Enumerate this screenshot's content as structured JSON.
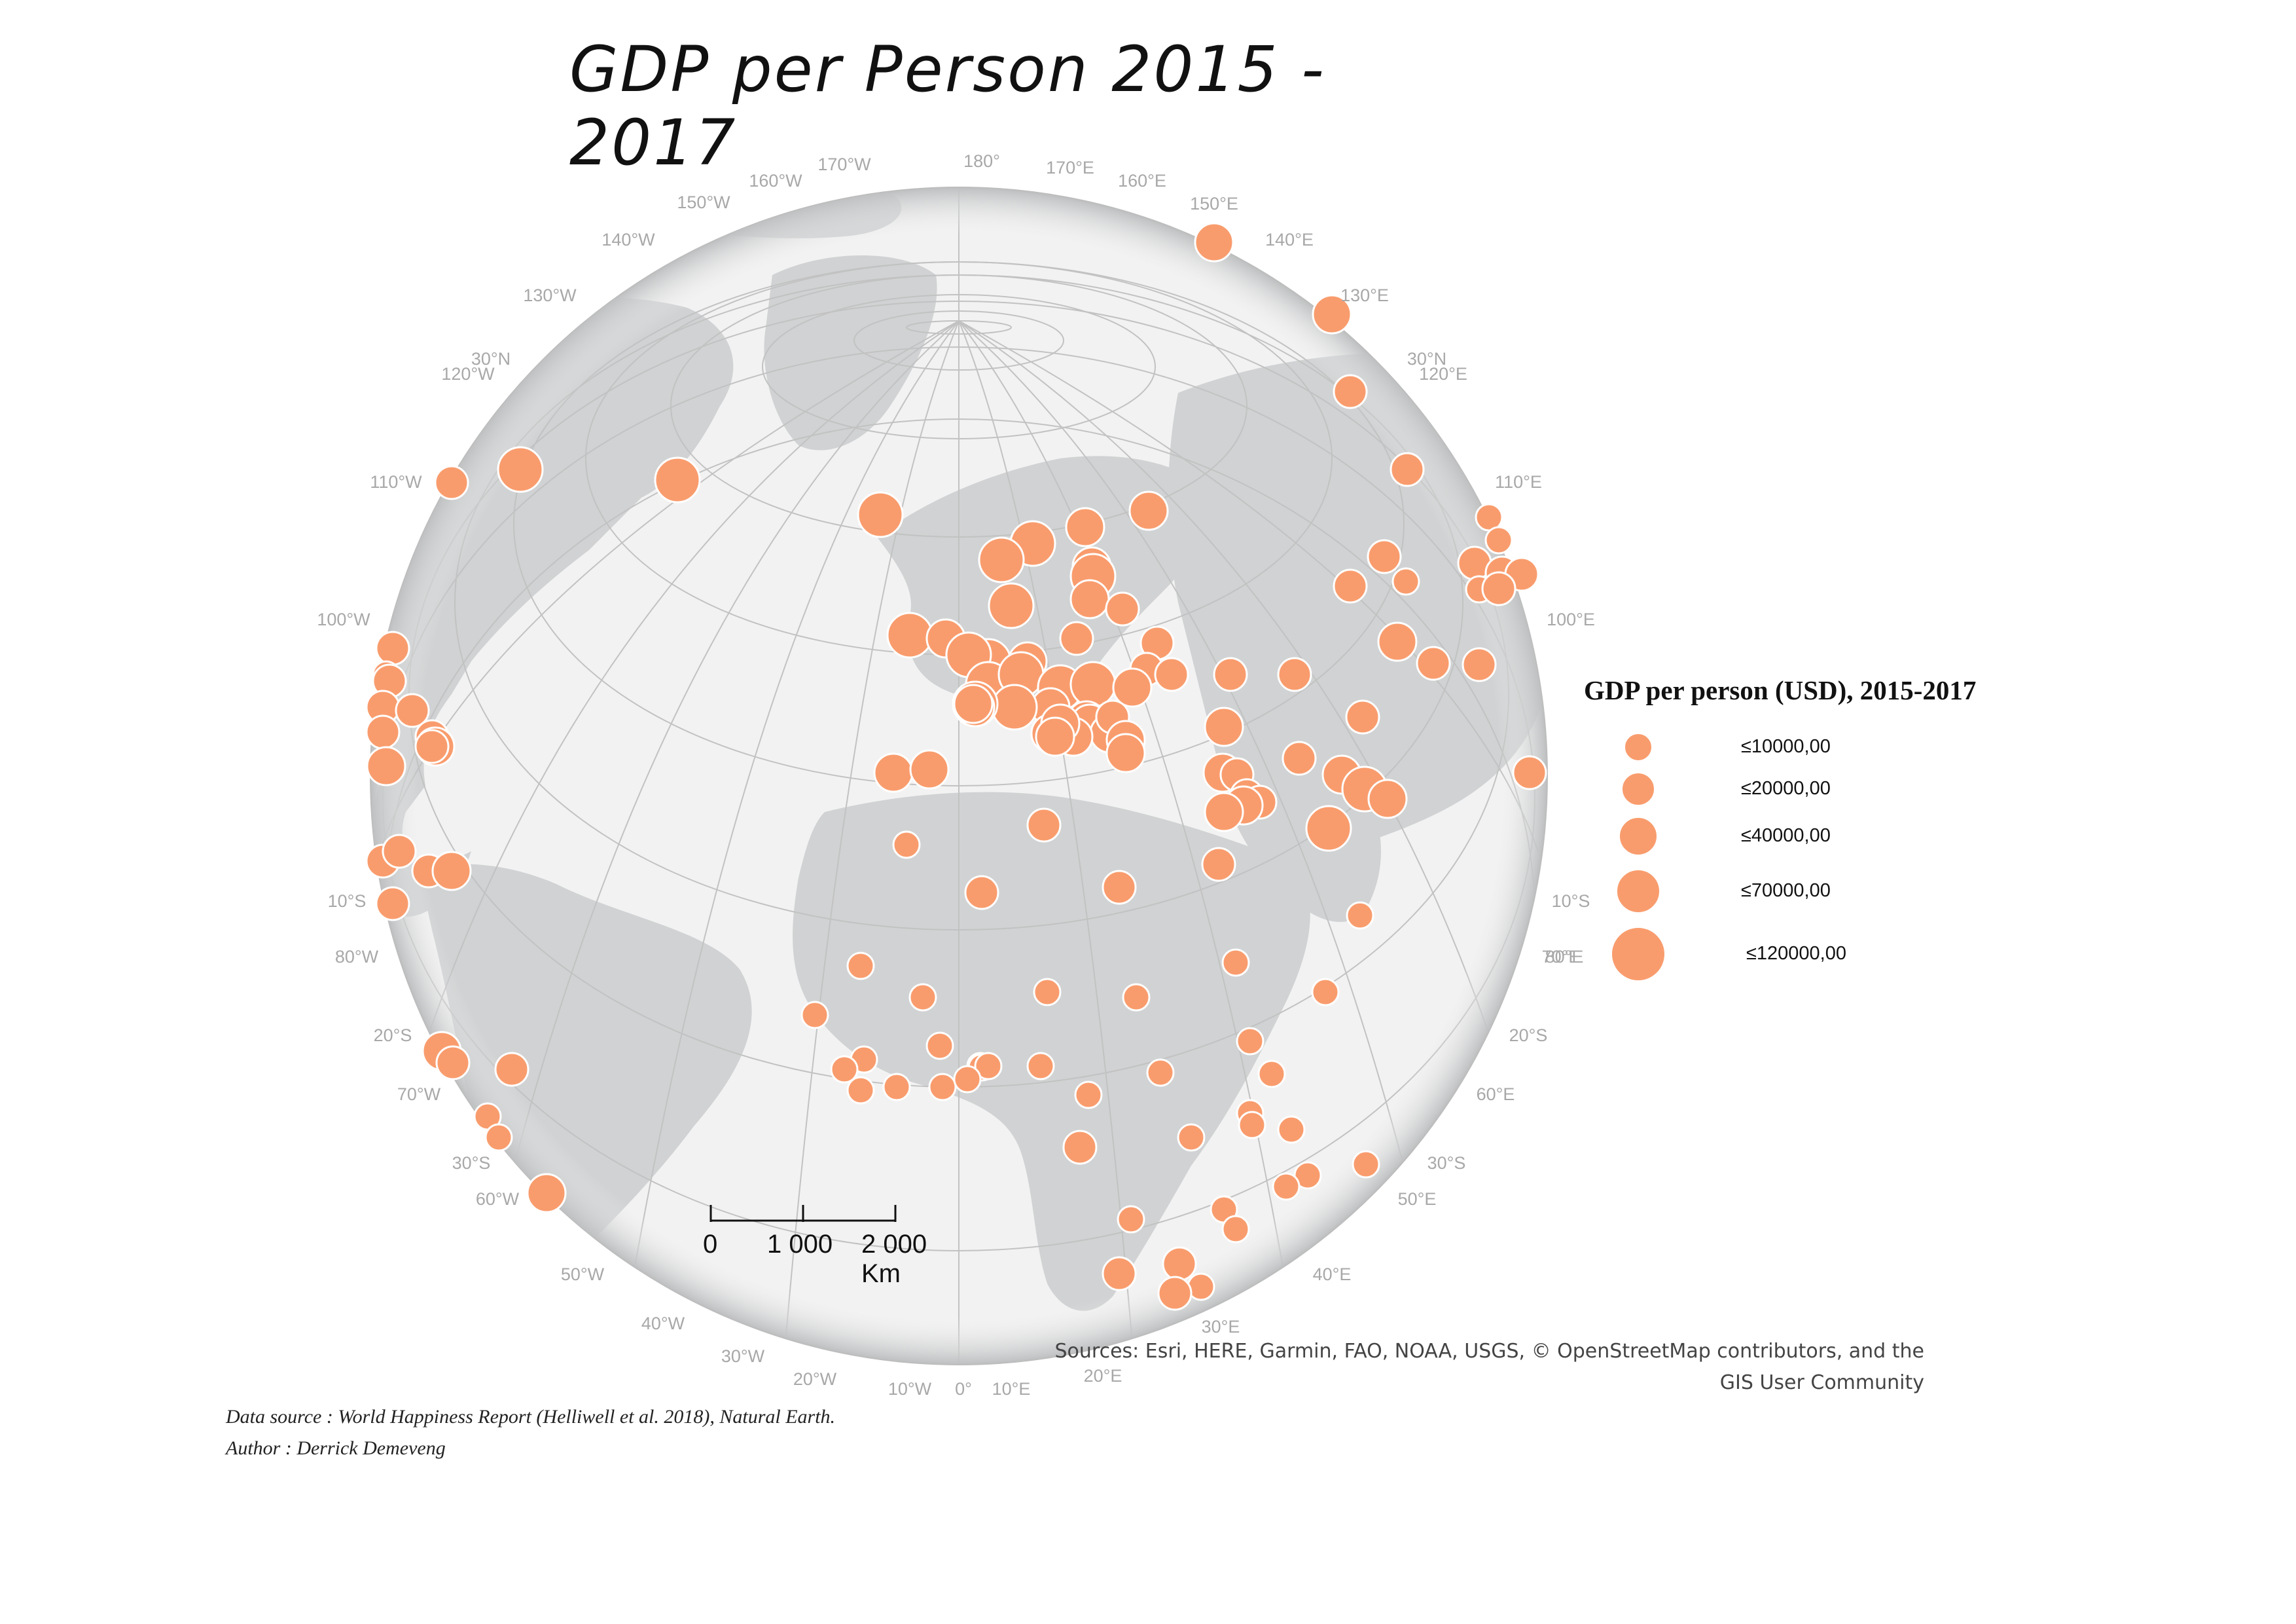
{
  "title": "GDP per Person 2015 - 2017",
  "colors": {
    "ocean": "#f2f2f2",
    "land": "#d0d2d3",
    "grid": "#c2c2c2",
    "marker": "#f99c6d",
    "marker_stroke": "#ffffff"
  },
  "graticule_labels": {
    "top": [
      "160°W",
      "150°W",
      "140°W",
      "130°W",
      "120°W",
      "110°W",
      "100°W",
      "170°W",
      "180°",
      "170°E",
      "160°E",
      "150°E",
      "140°E",
      "130°E",
      "120°E",
      "110°E",
      "100°E"
    ],
    "lat": [
      "30°N",
      "30°N",
      "10°S",
      "10°S",
      "20°S",
      "20°S",
      "30°S",
      "30°S"
    ],
    "sides": [
      "80°W",
      "70°W",
      "60°W",
      "50°W",
      "40°W",
      "30°W",
      "20°W",
      "10°W",
      "0°",
      "10°E",
      "20°E",
      "30°E",
      "40°E",
      "50°E",
      "60°E",
      "70°E",
      "80°E"
    ]
  },
  "legend": {
    "title": "GDP per person (USD), 2015-2017",
    "classes": [
      {
        "label": "≤10000,00",
        "max": 10000
      },
      {
        "label": "≤20000,00",
        "max": 20000
      },
      {
        "label": "≤40000,00",
        "max": 40000
      },
      {
        "label": "≤70000,00",
        "max": 70000
      },
      {
        "label": "≤120000,00",
        "max": 120000
      }
    ]
  },
  "scale_bar": {
    "labels": [
      "0",
      "1 000",
      "2 000 Km"
    ]
  },
  "sources": [
    "Sources: Esri, HERE, Garmin, FAO, NOAA, USGS, © OpenStreetMap contributors, and the",
    "GIS User Community"
  ],
  "credits": [
    "Data source : World Happiness Report (Helliwell et al. 2018), Natural Earth.",
    "Author : Derrick Demeveng"
  ]
}
